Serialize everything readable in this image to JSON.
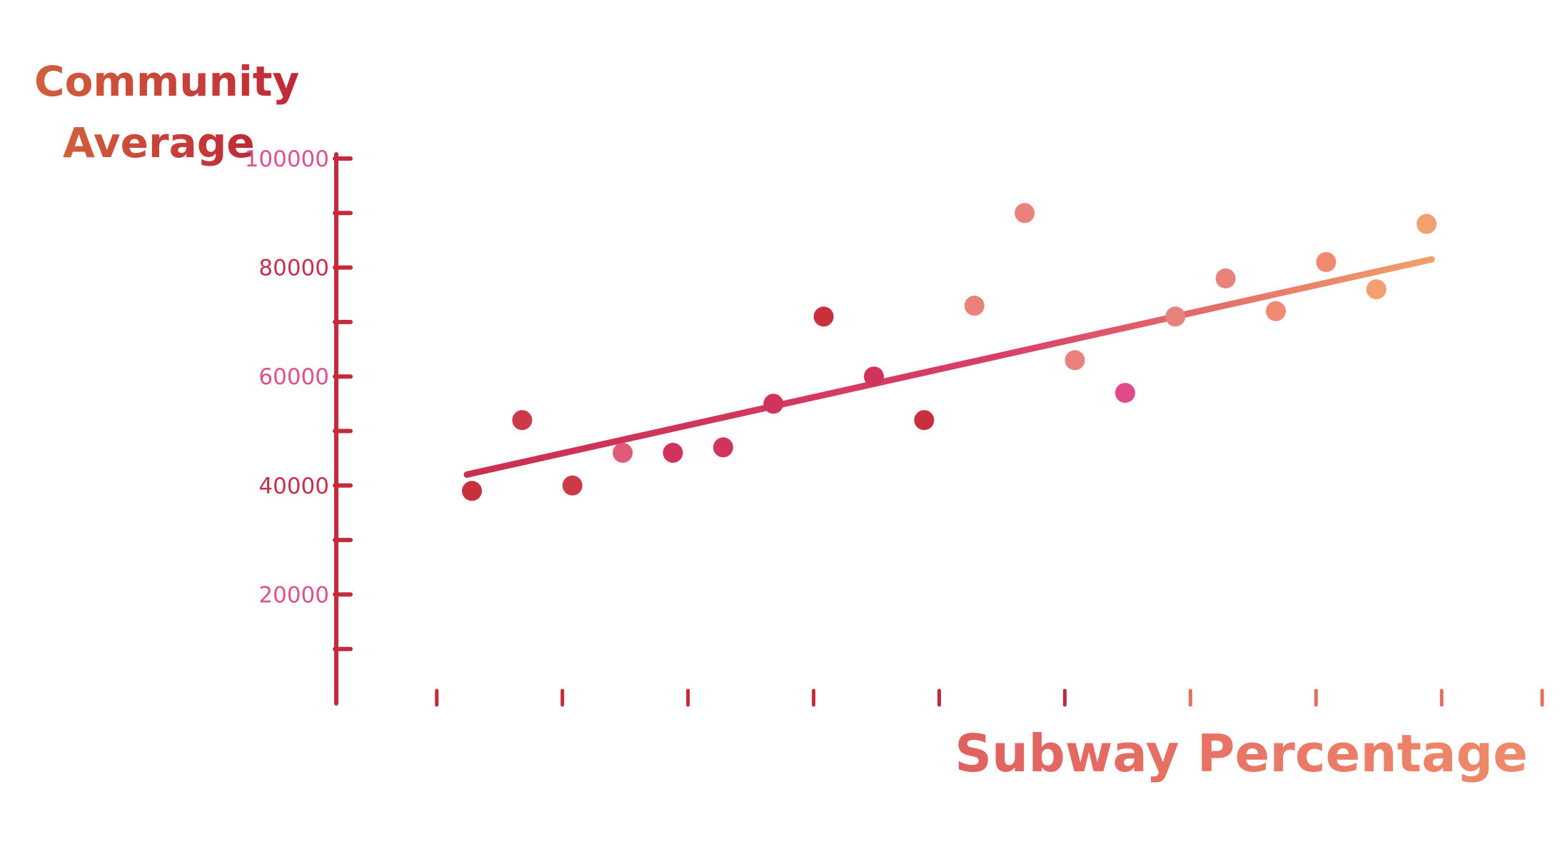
{
  "chart_data": {
    "type": "scatter",
    "title": "",
    "ylabel_lines": [
      "Community",
      "Average"
    ],
    "xlabel": "Subway Percentage",
    "ylim": [
      0,
      100000
    ],
    "xlim": [
      0,
      24
    ],
    "y_ticks": [
      {
        "value": 100000,
        "label": "100000"
      },
      {
        "value": 80000,
        "label": "80000"
      },
      {
        "value": 60000,
        "label": "60000"
      },
      {
        "value": 40000,
        "label": "40000"
      },
      {
        "value": 20000,
        "label": "20000"
      }
    ],
    "y_minor_ticks": [
      90000,
      70000,
      50000,
      30000,
      10000
    ],
    "x_ticks": [
      2,
      4.5,
      7,
      9.5,
      12,
      14.5,
      17,
      19.5,
      22,
      24
    ],
    "points": [
      {
        "x": 2.7,
        "y": 39000
      },
      {
        "x": 3.7,
        "y": 52000
      },
      {
        "x": 4.7,
        "y": 40000
      },
      {
        "x": 5.7,
        "y": 46000
      },
      {
        "x": 6.7,
        "y": 46000
      },
      {
        "x": 7.7,
        "y": 47000
      },
      {
        "x": 8.7,
        "y": 55000
      },
      {
        "x": 9.7,
        "y": 71000
      },
      {
        "x": 10.7,
        "y": 60000
      },
      {
        "x": 11.7,
        "y": 52000
      },
      {
        "x": 12.7,
        "y": 73000
      },
      {
        "x": 13.7,
        "y": 90000
      },
      {
        "x": 14.7,
        "y": 63000
      },
      {
        "x": 15.7,
        "y": 57000
      },
      {
        "x": 16.7,
        "y": 71000
      },
      {
        "x": 17.7,
        "y": 78000
      },
      {
        "x": 18.7,
        "y": 72000
      },
      {
        "x": 19.7,
        "y": 81000
      },
      {
        "x": 20.7,
        "y": 76000
      },
      {
        "x": 21.7,
        "y": 88000
      }
    ],
    "trendline": {
      "x1": 2.6,
      "y1": 42000,
      "x2": 21.8,
      "y2": 81500
    },
    "grid": false,
    "legend": "none"
  },
  "colors": {
    "axis": "#c42a3a",
    "ylabel": "#c83a3a",
    "xlabel": "#e3705e",
    "tick_label_a": "#c8304a",
    "tick_label_b": "#e0508a",
    "trend_start": "#c93050",
    "trend_mid": "#d83e6a",
    "trend_end": "#f0a06a",
    "point_palette": [
      "#c9303e",
      "#cc3a48",
      "#e05a78",
      "#d0345a",
      "#e8827a",
      "#f08a70",
      "#f2a070",
      "#e04a8a"
    ]
  }
}
